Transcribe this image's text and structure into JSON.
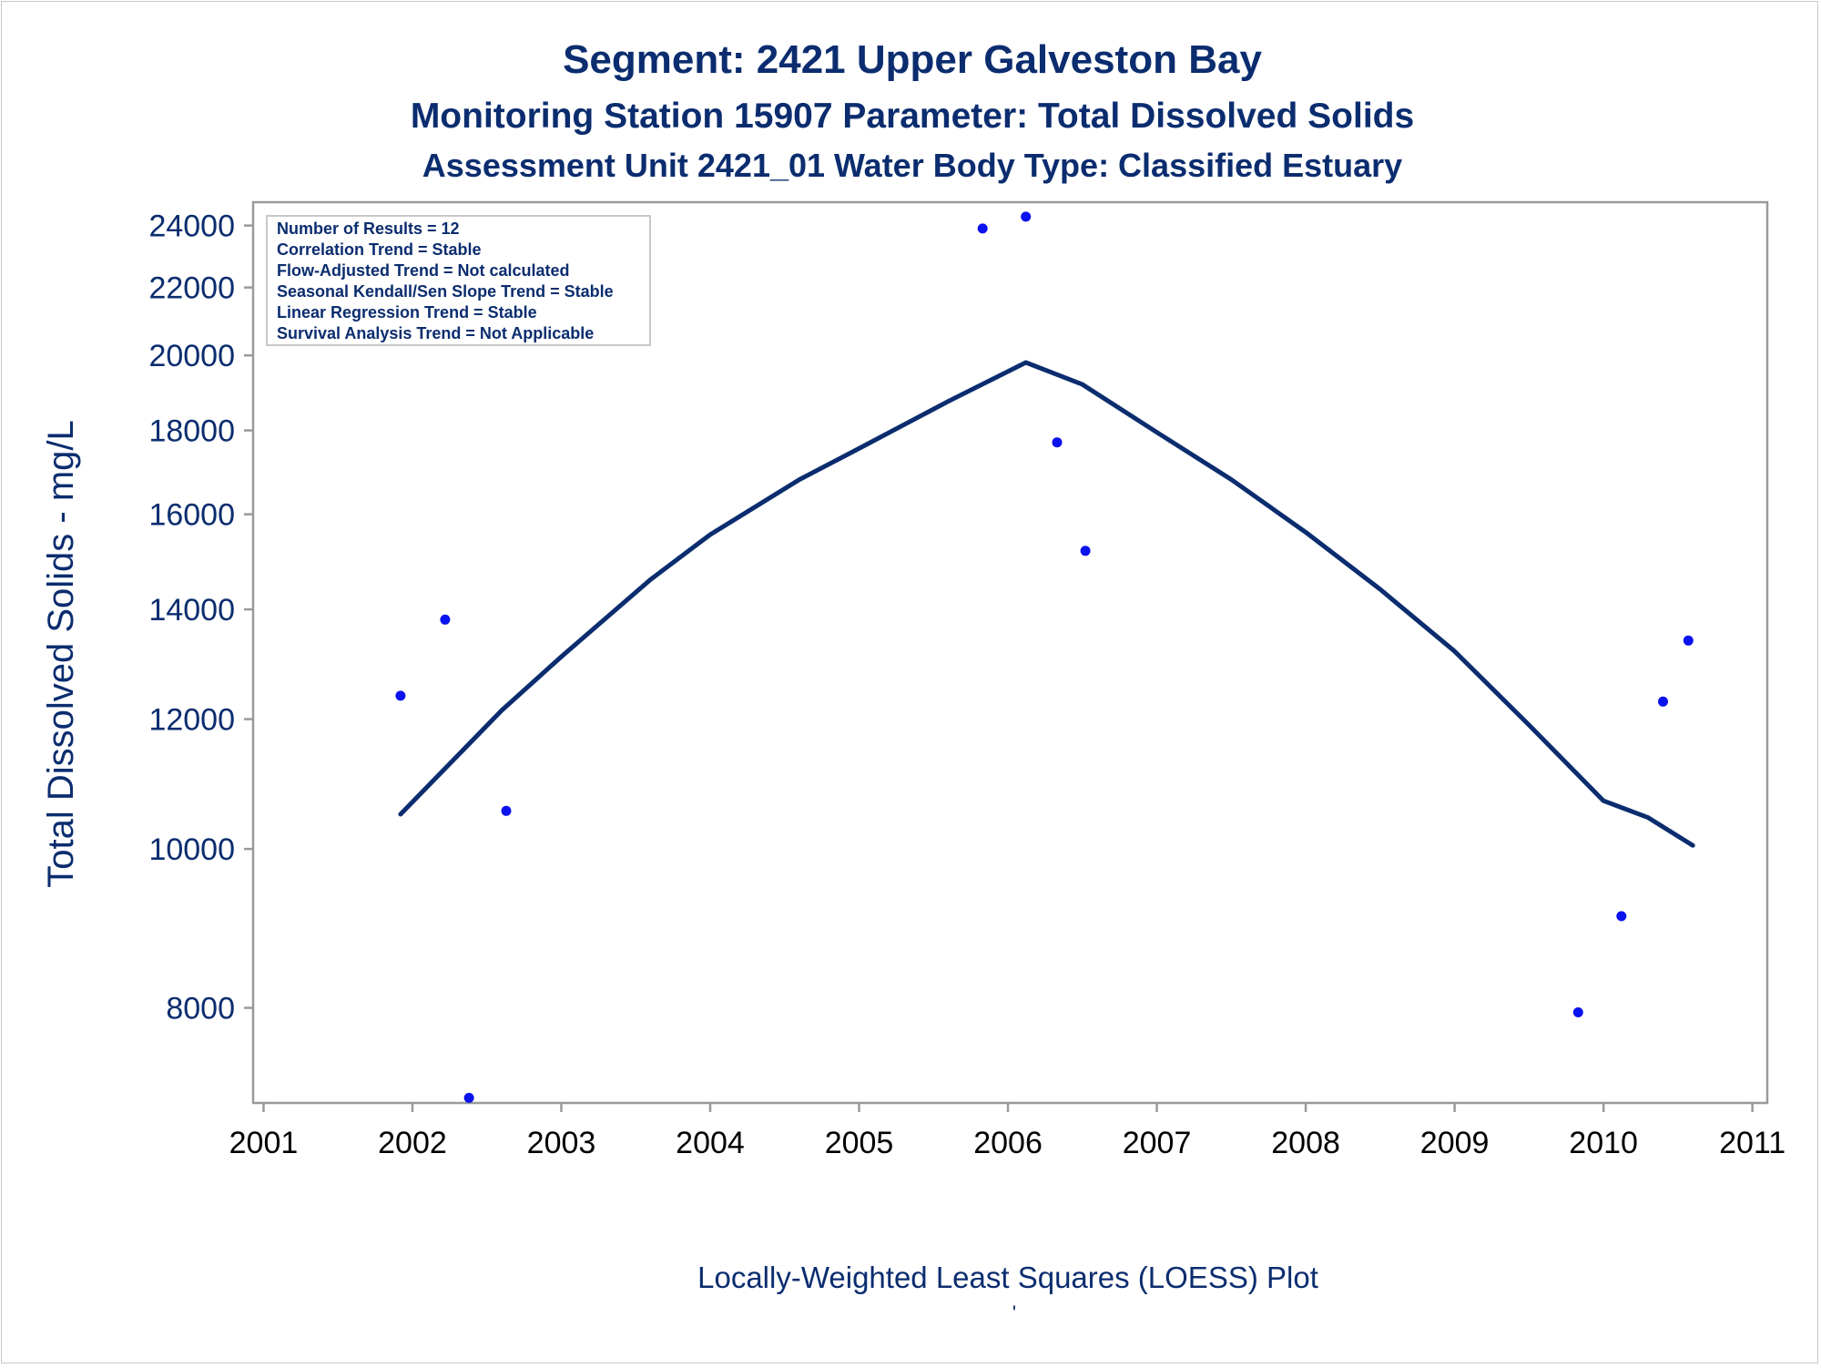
{
  "chart_data": {
    "type": "scatter",
    "title": "Segment: 2421  Upper Galveston Bay",
    "subtitle_1": "Monitoring Station 15907 Parameter: Total Dissolved Solids",
    "subtitle_2": "Assessment Unit 2421_01   Water Body Type: Classified Estuary",
    "ylabel": "Total Dissolved Solids - mg/L",
    "xlabel": "",
    "footnote": "Locally-Weighted Least Squares (LOESS) Plot",
    "footnote_mark": "'",
    "y_scale": "log",
    "ylim": [
      7000,
      24800
    ],
    "xlim": [
      2000.93,
      2011.1
    ],
    "yticks": [
      8000,
      10000,
      12000,
      14000,
      16000,
      18000,
      20000,
      22000,
      24000
    ],
    "xticks": [
      2001,
      2002,
      2003,
      2004,
      2005,
      2006,
      2007,
      2008,
      2009,
      2010,
      2011
    ],
    "grid": false,
    "stats_box": {
      "placement": "top-left",
      "lines": [
        "Number of Results = 12",
        "Correlation Trend = Stable",
        "Flow-Adjusted Trend = Not calculated",
        "Seasonal Kendall/Sen Slope Trend = Stable",
        "Linear Regression Trend = Stable",
        "Survival Analysis Trend = Not Applicable"
      ]
    },
    "series": [
      {
        "kind": "points",
        "x": [
          2001.92,
          2002.22,
          2002.38,
          2002.63,
          2005.83,
          2006.12,
          2006.33,
          2006.52,
          2009.83,
          2010.12,
          2010.4,
          2010.57
        ],
        "y": [
          12400,
          13800,
          7050,
          10550,
          23900,
          24300,
          17700,
          15200,
          7950,
          9100,
          12300,
          13400
        ]
      },
      {
        "kind": "line",
        "x": [
          2001.92,
          2002.2,
          2002.6,
          2003.0,
          2003.6,
          2004.0,
          2004.6,
          2005.0,
          2005.6,
          2006.12,
          2006.5,
          2007.0,
          2007.5,
          2008.0,
          2008.5,
          2009.0,
          2009.5,
          2010.0,
          2010.3,
          2010.6
        ],
        "y": [
          10500,
          11150,
          12150,
          13100,
          14600,
          15550,
          16800,
          17550,
          18750,
          19800,
          19200,
          17950,
          16800,
          15600,
          14400,
          13200,
          11900,
          10700,
          10450,
          10050
        ]
      }
    ],
    "colors": {
      "points": "#0a12ee",
      "line": "#0b2d6f",
      "text": "#0b2d6f",
      "axes": "#9a9a9a"
    }
  }
}
